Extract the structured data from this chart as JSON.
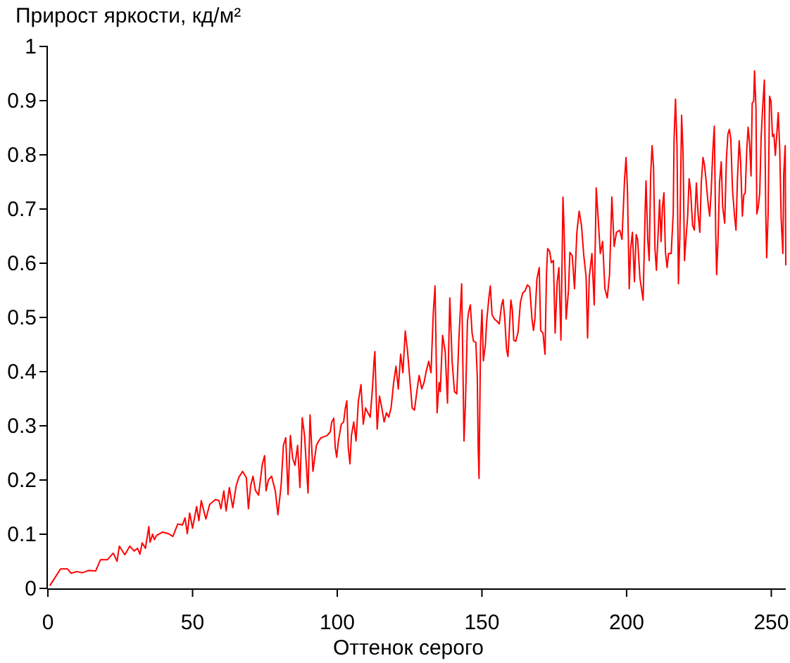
{
  "chart_data": {
    "type": "line",
    "ylabel": "Прирост яркости, кд/м²",
    "xlabel": "Оттенок серого",
    "xlim": [
      0,
      255
    ],
    "ylim": [
      0,
      1
    ],
    "xticks": [
      0,
      50,
      100,
      150,
      200,
      250
    ],
    "yticks": [
      0,
      0.1,
      0.2,
      0.3,
      0.4,
      0.5,
      0.6,
      0.7,
      0.8,
      0.9,
      1
    ],
    "x": [
      0.8,
      4.4,
      6.8,
      8,
      10,
      12,
      14,
      16.5,
      18.2,
      20.6,
      22.6,
      23.9,
      24.7,
      26.6,
      28.3,
      29.8,
      31,
      31.8,
      32.6,
      33.7,
      34.9,
      35.3,
      36.2,
      36.8,
      37.6,
      39.7,
      41.6,
      43.2,
      44.9,
      46.5,
      47.4,
      48.2,
      49,
      50,
      51.4,
      52.2,
      53,
      54.6,
      55.9,
      57.9,
      59.1,
      59.8,
      60.8,
      61.6,
      62.7,
      63.9,
      65.1,
      66,
      67.3,
      68.6,
      69.3,
      70.1,
      70.9,
      71.7,
      72.8,
      74.1,
      74.9,
      75.4,
      76.2,
      77.3,
      78.6,
      79.5,
      80.6,
      81.4,
      82.2,
      83,
      83.8,
      84.6,
      85.4,
      86.3,
      87.1,
      87.9,
      88.7,
      89.9,
      90.6,
      91.6,
      92.8,
      93.6,
      94.4,
      95.5,
      96.5,
      97.6,
      98.1,
      98.8,
      99.3,
      99.8,
      100.4,
      101.4,
      102.2,
      102.8,
      103.3,
      103.8,
      104.4,
      104.9,
      105.7,
      106.5,
      107.3,
      108.2,
      109,
      109.8,
      110.6,
      111.4,
      112.2,
      112.7,
      113,
      113.8,
      114.6,
      115.4,
      116.2,
      117,
      117.8,
      118.6,
      119.5,
      120.3,
      121.1,
      121.9,
      122.7,
      123.5,
      124.3,
      125.1,
      125.9,
      126.7,
      127.5,
      128.3,
      129.2,
      130,
      130.8,
      131.6,
      132.4,
      133.2,
      133.8,
      134.5,
      135.2,
      135.6,
      136.4,
      137.3,
      138.1,
      138.9,
      139.7,
      140.5,
      141.3,
      142.1,
      143,
      143.8,
      144.3,
      145,
      145.4,
      146,
      146.6,
      147.1,
      147.9,
      148.4,
      148.7,
      149,
      149.5,
      150,
      150.5,
      151.2,
      151.6,
      152.4,
      152.9,
      153.5,
      154.3,
      155.2,
      156,
      156.8,
      157.3,
      157.9,
      158.5,
      159,
      159.5,
      160,
      160.5,
      161,
      161.7,
      162.5,
      163.3,
      164.1,
      164.9,
      165.7,
      166.5,
      167.3,
      167.8,
      168.3,
      169,
      169.8,
      170.3,
      171.1,
      171.8,
      172.3,
      172.7,
      173.4,
      174,
      174.7,
      175.3,
      176,
      176.6,
      177.3,
      178,
      178.4,
      179.1,
      179.9,
      180.4,
      181.2,
      182,
      182.8,
      183.6,
      184.4,
      185.2,
      186,
      186.5,
      187.1,
      188,
      188.8,
      189.5,
      190.2,
      190.9,
      191.7,
      192.5,
      193.3,
      194.1,
      194.9,
      195.7,
      196.5,
      197.6,
      198.4,
      199.3,
      199.8,
      200.3,
      200.9,
      201.4,
      202,
      202.7,
      203.3,
      203.8,
      204.6,
      205.7,
      206.4,
      206.7,
      207.3,
      207.8,
      208.3,
      208.8,
      209.3,
      209.8,
      210.3,
      210.9,
      211.4,
      211.9,
      212.4,
      212.9,
      213.4,
      214,
      214.5,
      215.4,
      216.1,
      216.4,
      216.9,
      217.4,
      217.9,
      218.4,
      219,
      219.5,
      220,
      220.5,
      221.1,
      221.6,
      222.1,
      222.8,
      223.4,
      224.1,
      224.7,
      225.3,
      225.8,
      226.4,
      226.9,
      227.4,
      228.1,
      228.7,
      229.2,
      229.8,
      230.3,
      230.8,
      231.1,
      231.6,
      232.1,
      232.7,
      233.2,
      233.9,
      234.5,
      235,
      235.5,
      236,
      236.6,
      237.3,
      237.8,
      238.3,
      238.9,
      239.4,
      240,
      240.5,
      241,
      241.5,
      242,
      242.5,
      243,
      243.4,
      243.9,
      244.2,
      244.7,
      245,
      245.5,
      246,
      246.5,
      247,
      247.6,
      248.1,
      248.4,
      248.9,
      249.4,
      249.9,
      250.4,
      250.9,
      251.4,
      251.9,
      252.4,
      252.9,
      253.4,
      254,
      254.3,
      254.8,
      255
    ],
    "series": [
      {
        "color": "#ff0000",
        "values": [
          0.006,
          0.036,
          0.036,
          0.028,
          0.031,
          0.029,
          0.033,
          0.032,
          0.053,
          0.053,
          0.065,
          0.05,
          0.078,
          0.062,
          0.078,
          0.069,
          0.074,
          0.063,
          0.084,
          0.074,
          0.114,
          0.085,
          0.1,
          0.09,
          0.098,
          0.104,
          0.101,
          0.096,
          0.119,
          0.117,
          0.13,
          0.101,
          0.139,
          0.111,
          0.151,
          0.125,
          0.162,
          0.128,
          0.155,
          0.164,
          0.162,
          0.147,
          0.18,
          0.143,
          0.186,
          0.149,
          0.19,
          0.205,
          0.216,
          0.204,
          0.147,
          0.19,
          0.207,
          0.181,
          0.172,
          0.229,
          0.245,
          0.18,
          0.2,
          0.207,
          0.18,
          0.136,
          0.19,
          0.264,
          0.278,
          0.173,
          0.282,
          0.24,
          0.227,
          0.264,
          0.186,
          0.315,
          0.282,
          0.176,
          0.32,
          0.216,
          0.264,
          0.272,
          0.278,
          0.28,
          0.282,
          0.289,
          0.307,
          0.314,
          0.26,
          0.242,
          0.272,
          0.303,
          0.307,
          0.333,
          0.346,
          0.26,
          0.23,
          0.282,
          0.307,
          0.272,
          0.346,
          0.376,
          0.303,
          0.333,
          0.324,
          0.316,
          0.372,
          0.419,
          0.437,
          0.294,
          0.355,
          0.333,
          0.307,
          0.324,
          0.316,
          0.333,
          0.38,
          0.41,
          0.368,
          0.432,
          0.398,
          0.475,
          0.437,
          0.385,
          0.333,
          0.329,
          0.363,
          0.393,
          0.368,
          0.38,
          0.402,
          0.419,
          0.398,
          0.51,
          0.558,
          0.324,
          0.38,
          0.363,
          0.467,
          0.437,
          0.342,
          0.536,
          0.419,
          0.363,
          0.359,
          0.467,
          0.562,
          0.272,
          0.341,
          0.493,
          0.51,
          0.523,
          0.471,
          0.456,
          0.454,
          0.389,
          0.259,
          0.203,
          0.446,
          0.514,
          0.42,
          0.45,
          0.49,
          0.536,
          0.558,
          0.505,
          0.497,
          0.493,
          0.488,
          0.523,
          0.533,
          0.497,
          0.441,
          0.428,
          0.48,
          0.532,
          0.514,
          0.458,
          0.456,
          0.473,
          0.528,
          0.545,
          0.549,
          0.56,
          0.556,
          0.497,
          0.476,
          0.497,
          0.571,
          0.592,
          0.476,
          0.471,
          0.432,
          0.579,
          0.627,
          0.622,
          0.601,
          0.605,
          0.471,
          0.565,
          0.592,
          0.458,
          0.722,
          0.661,
          0.497,
          0.549,
          0.62,
          0.614,
          0.553,
          0.657,
          0.696,
          0.67,
          0.614,
          0.575,
          0.462,
          0.575,
          0.618,
          0.523,
          0.739,
          0.679,
          0.618,
          0.64,
          0.553,
          0.536,
          0.579,
          0.722,
          0.631,
          0.657,
          0.661,
          0.644,
          0.756,
          0.795,
          0.735,
          0.553,
          0.627,
          0.657,
          0.566,
          0.653,
          0.644,
          0.573,
          0.532,
          0.696,
          0.752,
          0.644,
          0.605,
          0.761,
          0.817,
          0.778,
          0.626,
          0.587,
          0.657,
          0.717,
          0.64,
          0.704,
          0.73,
          0.622,
          0.592,
          0.618,
          0.618,
          0.691,
          0.83,
          0.903,
          0.817,
          0.562,
          0.649,
          0.873,
          0.804,
          0.605,
          0.644,
          0.687,
          0.756,
          0.735,
          0.67,
          0.661,
          0.748,
          0.691,
          0.657,
          0.748,
          0.795,
          0.782,
          0.756,
          0.713,
          0.687,
          0.73,
          0.808,
          0.853,
          0.653,
          0.579,
          0.644,
          0.748,
          0.787,
          0.704,
          0.674,
          0.795,
          0.838,
          0.847,
          0.83,
          0.735,
          0.687,
          0.661,
          0.756,
          0.826,
          0.787,
          0.687,
          0.726,
          0.73,
          0.808,
          0.851,
          0.821,
          0.761,
          0.895,
          0.899,
          0.955,
          0.886,
          0.691,
          0.704,
          0.73,
          0.834,
          0.886,
          0.938,
          0.687,
          0.61,
          0.691,
          0.908,
          0.899,
          0.834,
          0.838,
          0.799,
          0.838,
          0.878,
          0.812,
          0.683,
          0.618,
          0.765,
          0.817,
          0.597
        ]
      }
    ]
  }
}
